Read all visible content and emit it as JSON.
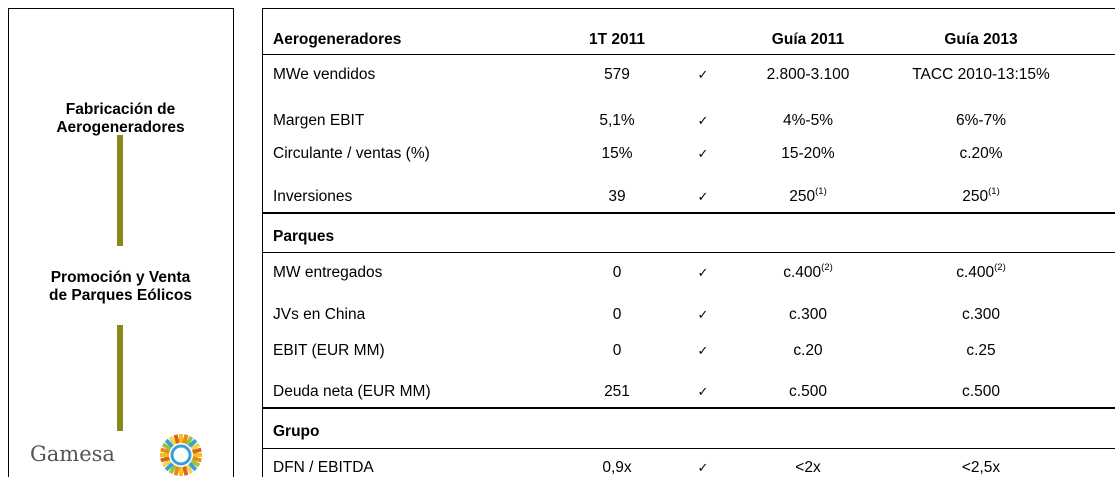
{
  "side": {
    "sections": [
      {
        "lines": [
          "Fabricación de",
          "Aerogeneradores"
        ]
      },
      {
        "lines": [
          "Promoción y Venta",
          "de Parques Eólicos"
        ]
      }
    ],
    "logo": "Gamesa"
  },
  "table": {
    "columns": [
      "1T 2011",
      "Guía 2011",
      "Guía 2013"
    ],
    "groups": [
      {
        "title": "Aerogeneradores",
        "rows": [
          {
            "label": "MWe vendidos",
            "actual": "579",
            "check": "✓",
            "guide_2011": "2.800-3.100",
            "guide_2013": "TACC 2010-13:15%"
          },
          {
            "label": "Margen EBIT",
            "actual": "5,1%",
            "check": "✓",
            "guide_2011": "4%-5%",
            "guide_2013": "6%-7%"
          },
          {
            "label": "Circulante / ventas (%)",
            "actual": "15%",
            "check": "✓",
            "guide_2011": "15-20%",
            "guide_2013": "c.20%"
          },
          {
            "label": "Inversiones",
            "actual": "39",
            "check": "✓",
            "guide_2011": {
              "text": "250",
              "sup": "(1)"
            },
            "guide_2013": {
              "text": "250",
              "sup": "(1)"
            }
          }
        ]
      },
      {
        "title": "Parques",
        "rows": [
          {
            "label": "MW entregados",
            "actual": "0",
            "check": "✓",
            "guide_2011": {
              "text": "c.400",
              "sup": "(2)"
            },
            "guide_2013": {
              "text": "c.400",
              "sup": "(2)"
            }
          },
          {
            "label": "JVs  en China",
            "actual": "0",
            "check": "✓",
            "guide_2011": "c.300",
            "guide_2013": "c.300"
          },
          {
            "label": "EBIT (EUR MM)",
            "actual": "0",
            "check": "✓",
            "guide_2011": "c.20",
            "guide_2013": "c.25"
          },
          {
            "label": "Deuda neta (EUR MM)",
            "actual": "251",
            "check": "✓",
            "guide_2011": "c.500",
            "guide_2013": "c.500"
          }
        ]
      },
      {
        "title": "Grupo",
        "rows": [
          {
            "label": "DFN / EBITDA",
            "actual": "0,9x",
            "check": "✓",
            "guide_2011": "<2x",
            "guide_2013": "<2,5x"
          }
        ]
      }
    ]
  }
}
